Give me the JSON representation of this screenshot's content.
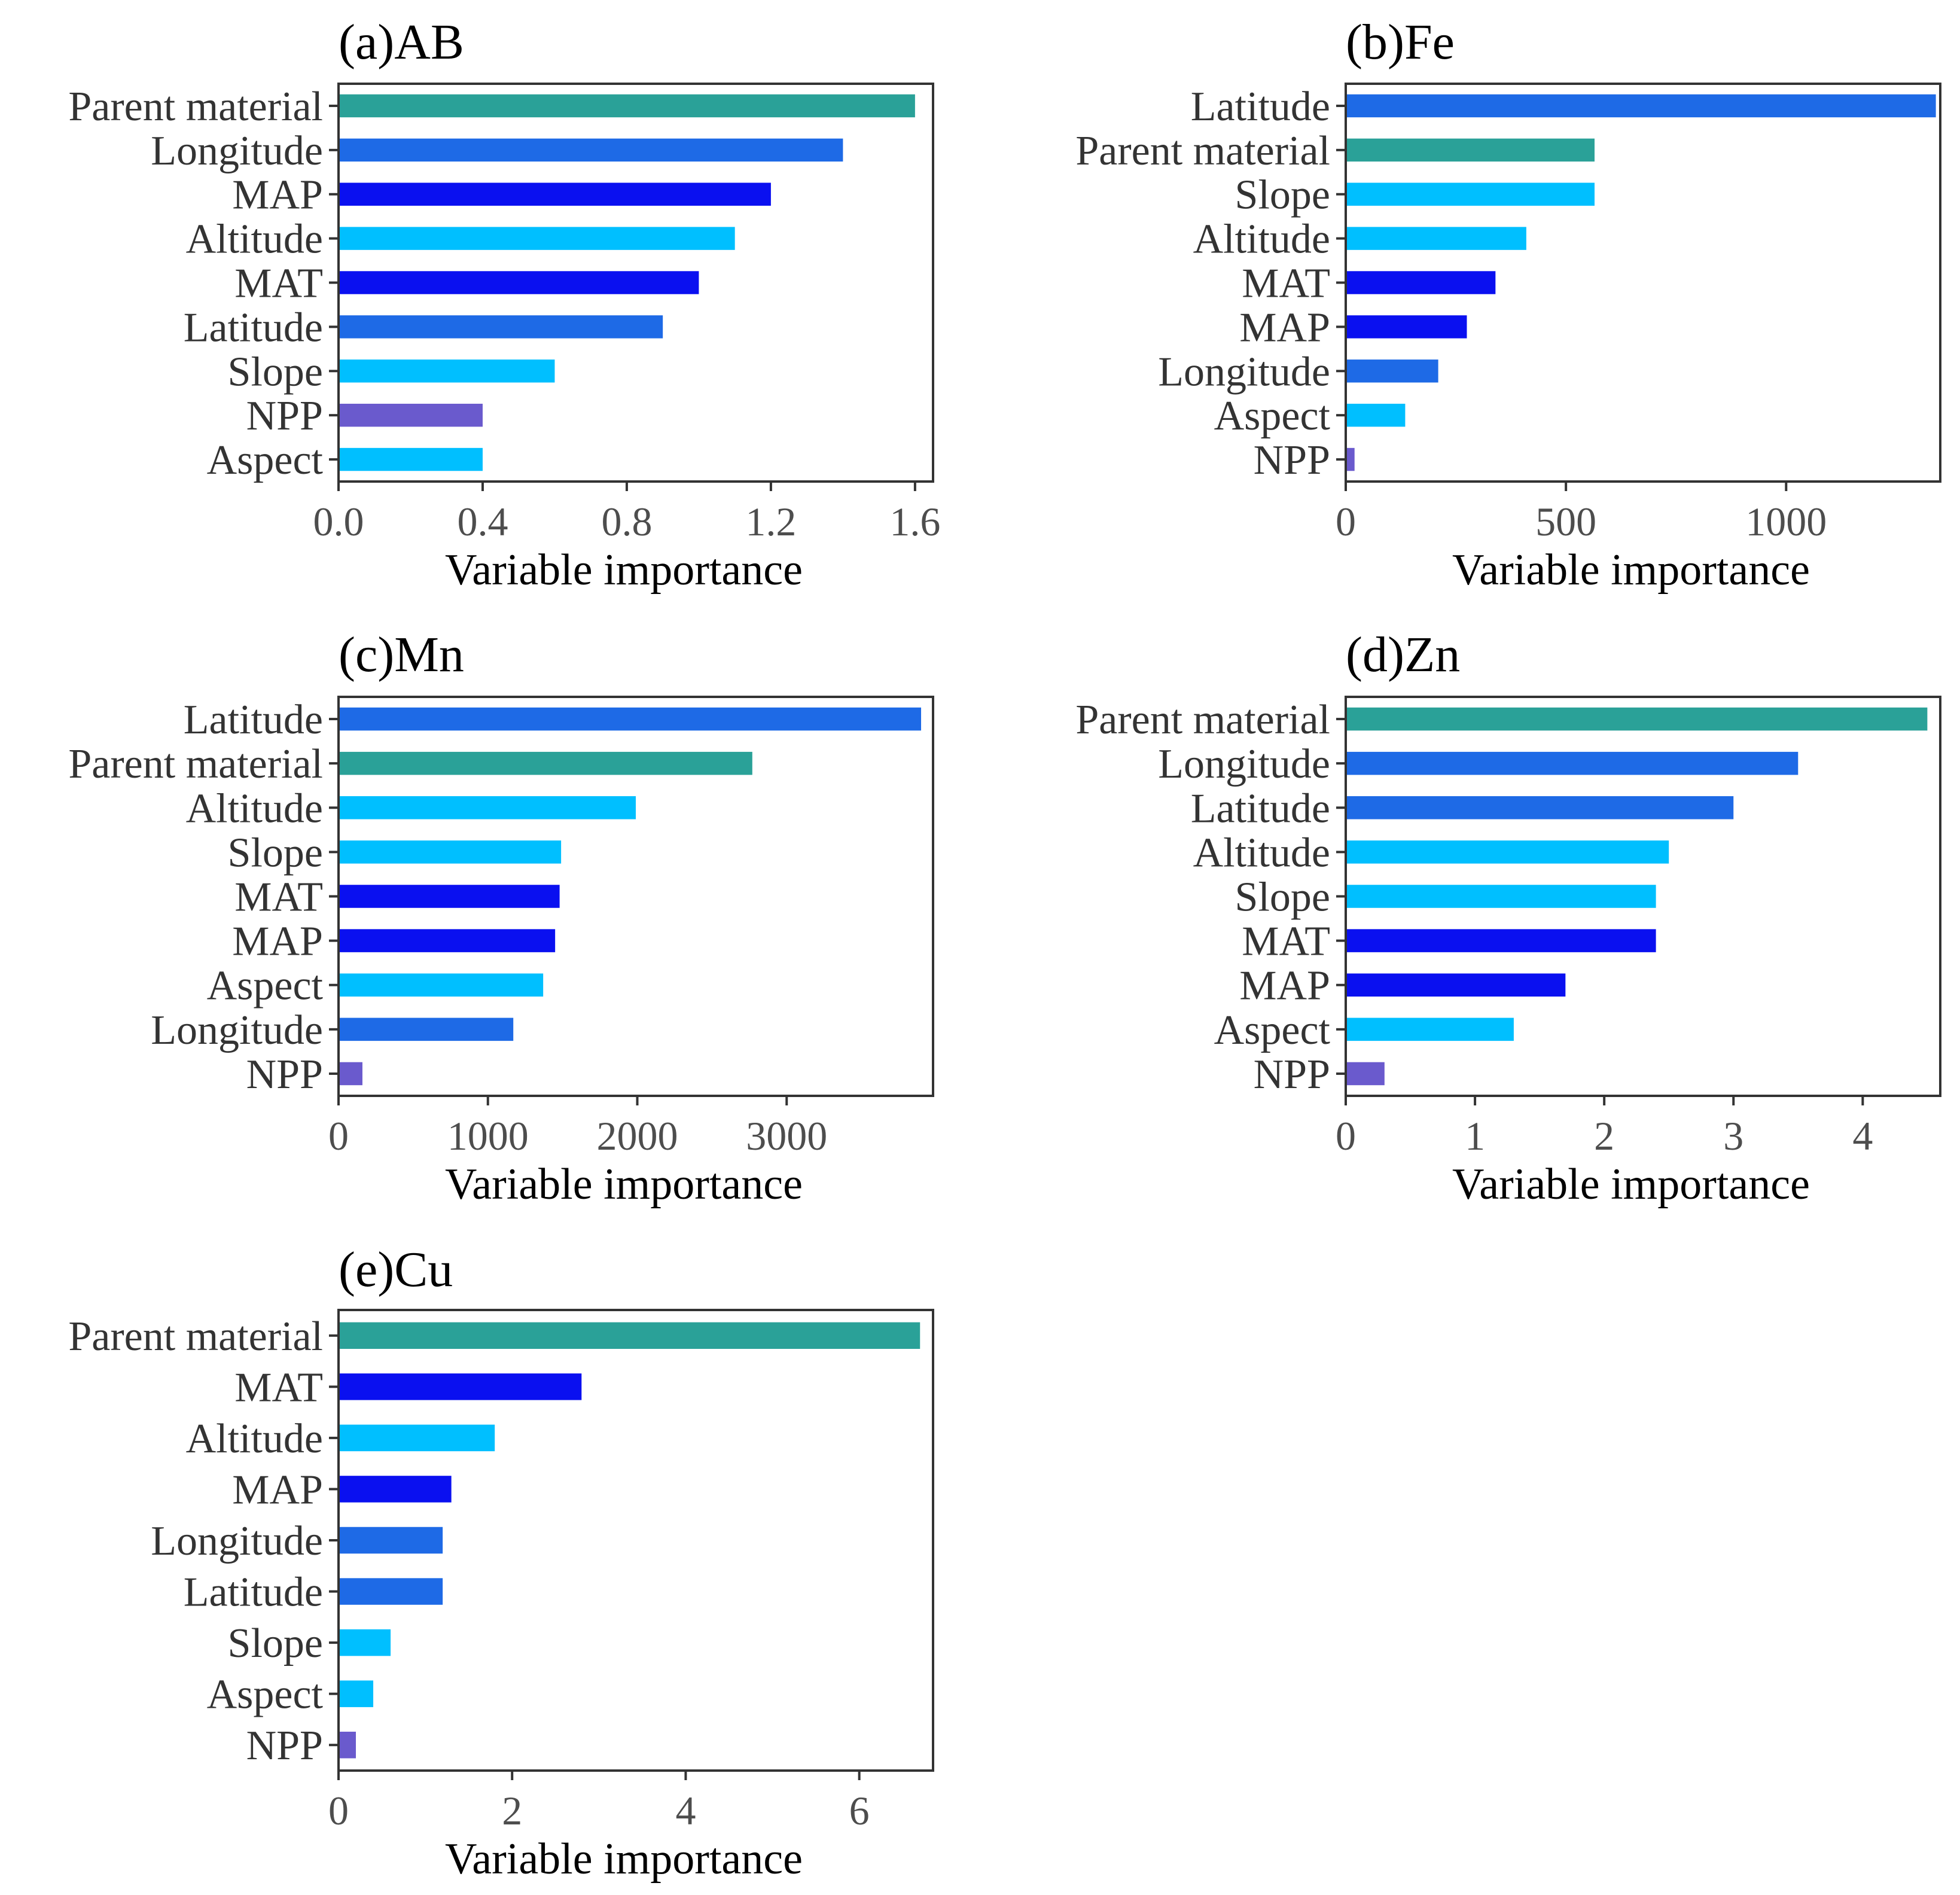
{
  "chart_data": [
    {
      "type": "bar",
      "orientation": "horizontal",
      "title": "(a)AB",
      "xlabel": "Variable importance",
      "categories": [
        "Parent material",
        "Longitude",
        "MAP",
        "Altitude",
        "MAT",
        "Latitude",
        "Slope",
        "NPP",
        "Aspect"
      ],
      "values": [
        1.6,
        1.4,
        1.2,
        1.1,
        1.0,
        0.9,
        0.6,
        0.4,
        0.4
      ],
      "colors": [
        "#2aa198",
        "#1e6ae6",
        "#0a10f0",
        "#00bfff",
        "#0a10f0",
        "#1e6ae6",
        "#00bfff",
        "#6a5acd",
        "#00bfff"
      ],
      "xlim": [
        0,
        1.65
      ],
      "xticks": [
        0.0,
        0.4,
        0.8,
        1.2,
        1.6
      ],
      "xtick_labels": [
        "0.0",
        "0.4",
        "0.8",
        "1.2",
        "1.6"
      ]
    },
    {
      "type": "bar",
      "orientation": "horizontal",
      "title": "(b)Fe",
      "xlabel": "Variable importance",
      "categories": [
        "Latitude",
        "Parent material",
        "Slope",
        "Altitude",
        "MAT",
        "MAP",
        "Longitude",
        "Aspect",
        "NPP"
      ],
      "values": [
        1340,
        565,
        565,
        410,
        340,
        275,
        210,
        135,
        20
      ],
      "colors": [
        "#1e6ae6",
        "#2aa198",
        "#00bfff",
        "#00bfff",
        "#0a10f0",
        "#0a10f0",
        "#1e6ae6",
        "#00bfff",
        "#6a5acd"
      ],
      "xlim": [
        0,
        1350
      ],
      "xticks": [
        0,
        500,
        1000
      ],
      "xtick_labels": [
        "0",
        "500",
        "1000"
      ]
    },
    {
      "type": "bar",
      "orientation": "horizontal",
      "title": "(c)Mn",
      "xlabel": "Variable importance",
      "categories": [
        "Latitude",
        "Parent material",
        "Altitude",
        "Slope",
        "MAT",
        "MAP",
        "Aspect",
        "Longitude",
        "NPP"
      ],
      "values": [
        3900,
        2770,
        1990,
        1490,
        1480,
        1450,
        1370,
        1170,
        160
      ],
      "colors": [
        "#1e6ae6",
        "#2aa198",
        "#00bfff",
        "#00bfff",
        "#0a10f0",
        "#0a10f0",
        "#00bfff",
        "#1e6ae6",
        "#6a5acd"
      ],
      "xlim": [
        0,
        3980
      ],
      "xticks": [
        0,
        1000,
        2000,
        3000
      ],
      "xtick_labels": [
        "0",
        "1000",
        "2000",
        "3000"
      ]
    },
    {
      "type": "bar",
      "orientation": "horizontal",
      "title": "(d)Zn",
      "xlabel": "Variable importance",
      "categories": [
        "Parent material",
        "Longitude",
        "Latitude",
        "Altitude",
        "Slope",
        "MAT",
        "MAP",
        "Aspect",
        "NPP"
      ],
      "values": [
        4.5,
        3.5,
        3.0,
        2.5,
        2.4,
        2.4,
        1.7,
        1.3,
        0.3
      ],
      "colors": [
        "#2aa198",
        "#1e6ae6",
        "#1e6ae6",
        "#00bfff",
        "#00bfff",
        "#0a10f0",
        "#0a10f0",
        "#00bfff",
        "#6a5acd"
      ],
      "xlim": [
        0,
        4.6
      ],
      "xticks": [
        0,
        1,
        2,
        3,
        4
      ],
      "xtick_labels": [
        "0",
        "1",
        "2",
        "3",
        "4"
      ]
    },
    {
      "type": "bar",
      "orientation": "horizontal",
      "title": "(e)Cu",
      "xlabel": "Variable importance",
      "categories": [
        "Parent material",
        "MAT",
        "Altitude",
        "MAP",
        "Longitude",
        "Latitude",
        "Slope",
        "Aspect",
        "NPP"
      ],
      "values": [
        6.7,
        2.8,
        1.8,
        1.3,
        1.2,
        1.2,
        0.6,
        0.4,
        0.2
      ],
      "colors": [
        "#2aa198",
        "#0a10f0",
        "#00bfff",
        "#0a10f0",
        "#1e6ae6",
        "#1e6ae6",
        "#00bfff",
        "#00bfff",
        "#6a5acd"
      ],
      "xlim": [
        0,
        6.85
      ],
      "xticks": [
        0,
        2,
        4,
        6
      ],
      "xtick_labels": [
        "0",
        "2",
        "4",
        "6"
      ]
    }
  ]
}
